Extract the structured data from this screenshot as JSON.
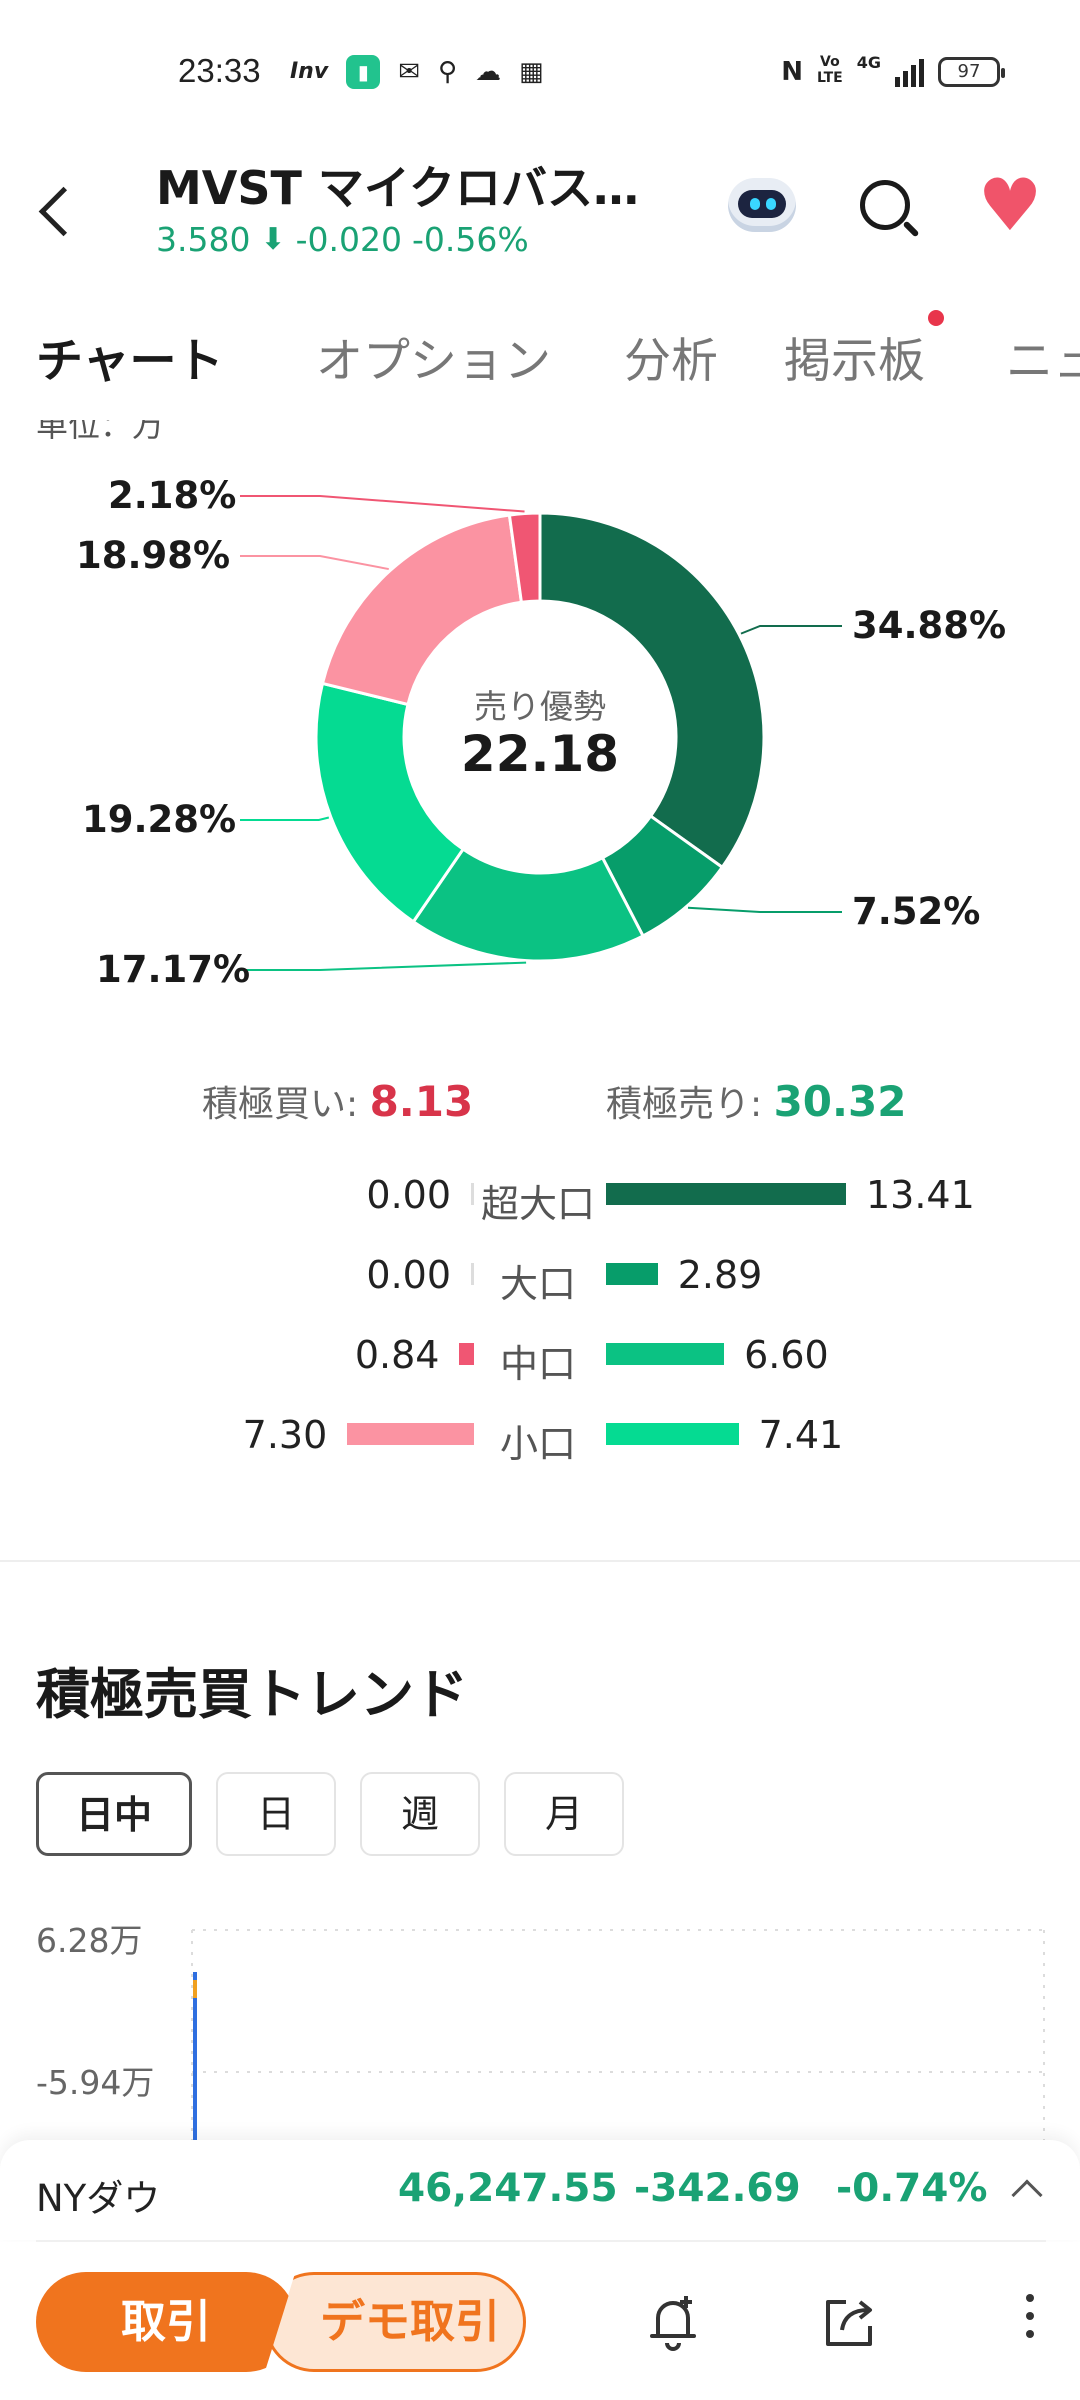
{
  "status_bar": {
    "time": "23:33",
    "inv_label": "Inv",
    "volte": "Vo\nLTE",
    "network": "4G",
    "battery": "97",
    "icons": [
      "inv-icon",
      "battery-saver-icon",
      "mail-icon",
      "location-icon",
      "cloud-icon",
      "calendar-icon",
      "nfc-icon",
      "volte-icon",
      "signal-icon",
      "battery-icon"
    ]
  },
  "header": {
    "title": "MVST マイクロバス…",
    "price": "3.580",
    "change": "-0.020",
    "change_pct": "-0.56%"
  },
  "tabs": [
    {
      "label": "チャート",
      "active": true
    },
    {
      "label": "オプション",
      "active": false
    },
    {
      "label": "分析",
      "active": false
    },
    {
      "label": "掲示板",
      "active": false
    },
    {
      "label": "ニュ",
      "active": false
    }
  ],
  "unit_label": "単位：万",
  "donut": {
    "center_label": "売り優勢",
    "center_value": "22.18",
    "slices": [
      {
        "label": "34.88%",
        "value": 34.88,
        "color": "#126c4d"
      },
      {
        "label": "7.52%",
        "value": 7.52,
        "color": "#079d6a"
      },
      {
        "label": "17.17%",
        "value": 17.17,
        "color": "#0bc283"
      },
      {
        "label": "19.28%",
        "value": 19.28,
        "color": "#05db92"
      },
      {
        "label": "18.98%",
        "value": 18.98,
        "color": "#fb93a2"
      },
      {
        "label": "2.18%",
        "value": 2.18,
        "color": "#f05673"
      }
    ]
  },
  "summary": {
    "buy_label": "積極買い: ",
    "buy_value": "8.13",
    "sell_label": "積極売り: ",
    "sell_value": "30.32"
  },
  "flows": [
    {
      "label": "超大口",
      "buy": "0.00",
      "buy_num": 0.0,
      "sell": "13.41",
      "sell_num": 13.41,
      "sell_color": "#126c4d"
    },
    {
      "label": "大口",
      "buy": "0.00",
      "buy_num": 0.0,
      "sell": "2.89",
      "sell_num": 2.89,
      "sell_color": "#079d6a"
    },
    {
      "label": "中口",
      "buy": "0.84",
      "buy_num": 0.84,
      "sell": "6.60",
      "sell_num": 6.6,
      "sell_color": "#0bc283"
    },
    {
      "label": "小口",
      "buy": "7.30",
      "buy_num": 7.3,
      "sell": "7.41",
      "sell_num": 7.41,
      "sell_color": "#05db92"
    }
  ],
  "trend": {
    "title": "積極売買トレンド",
    "periods": [
      {
        "label": "日中",
        "active": true
      },
      {
        "label": "日",
        "active": false
      },
      {
        "label": "週",
        "active": false
      },
      {
        "label": "月",
        "active": false
      }
    ],
    "y_top": "6.28万",
    "y_mid": "-5.94万"
  },
  "index_bar": {
    "name": "NYダウ",
    "value": "46,247.55",
    "change": "-342.69",
    "change_pct": "-0.74%"
  },
  "actions": {
    "trade": "取引",
    "demo": "デモ取引"
  },
  "colors": {
    "accent": "#f0741e",
    "down": "#1aa274",
    "up": "#d8344a"
  }
}
